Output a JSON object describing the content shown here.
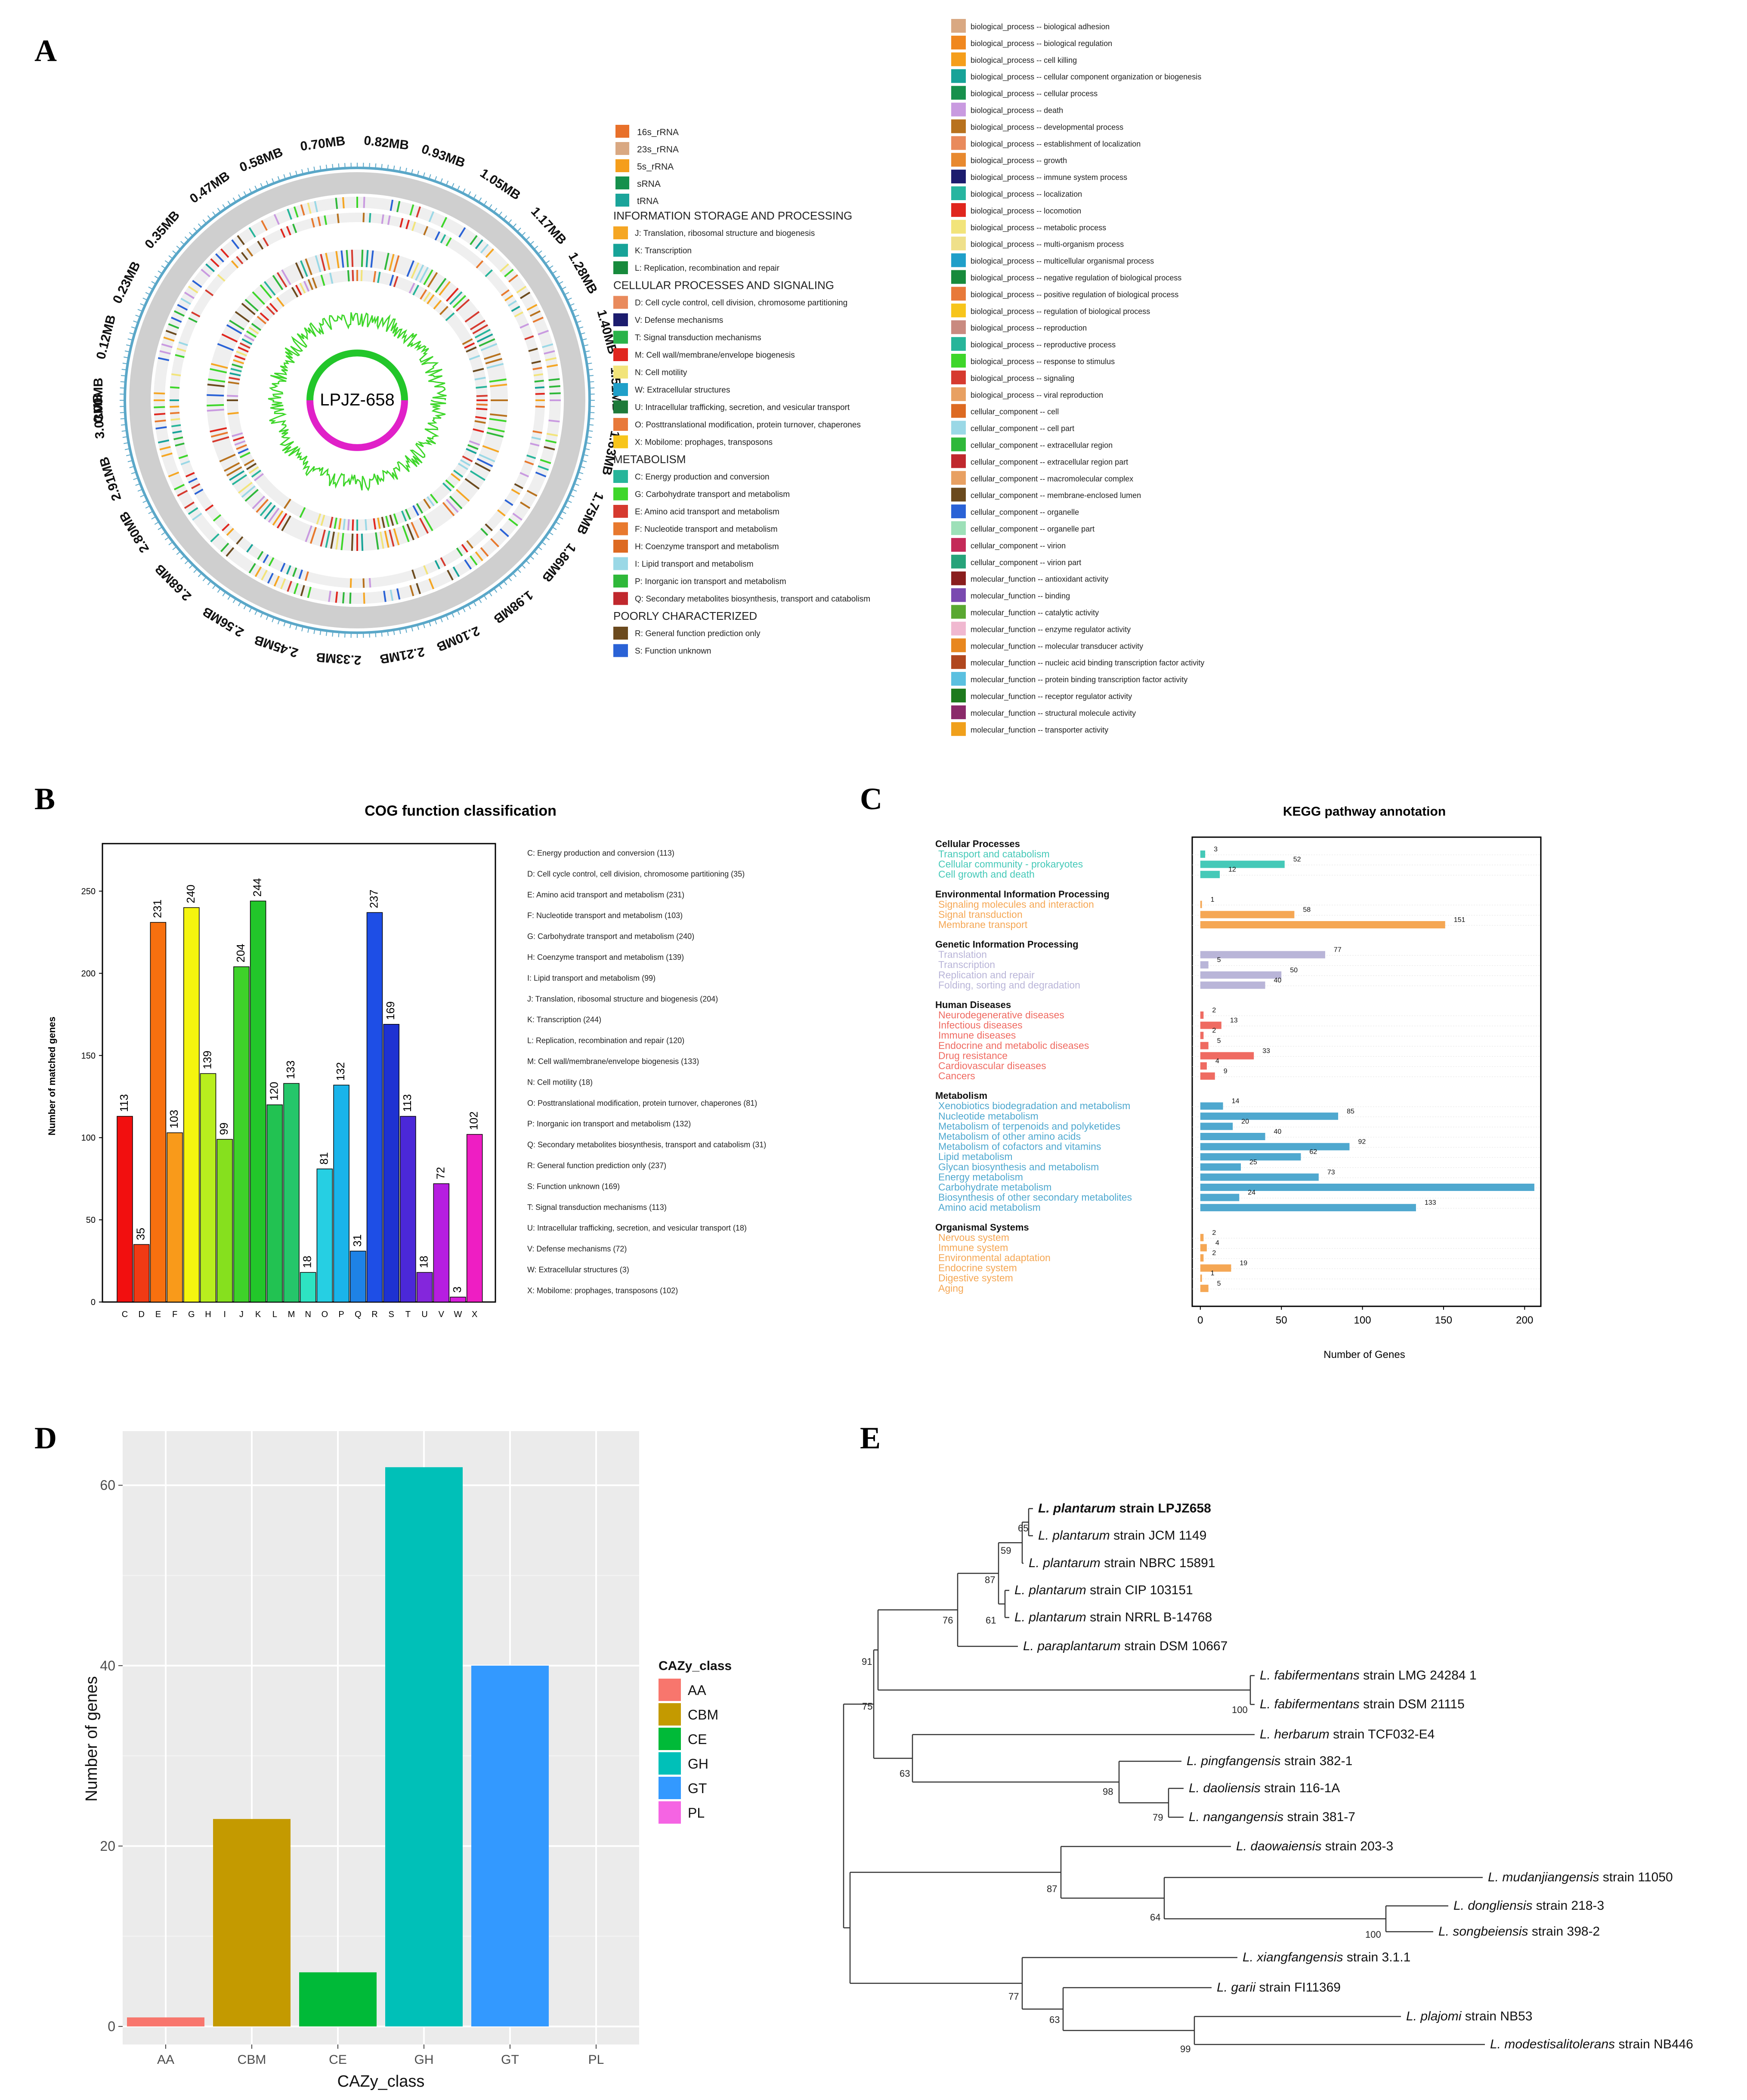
{
  "panels": {
    "a": "A",
    "b": "B",
    "c": "C",
    "d": "D",
    "e": "E"
  },
  "genome": {
    "center_label": "LPJZ-658",
    "scale_labels": [
      "0.00MB",
      "0.12MB",
      "0.23MB",
      "0.35MB",
      "0.47MB",
      "0.58MB",
      "0.70MB",
      "0.82MB",
      "0.93MB",
      "1.05MB",
      "1.17MB",
      "1.28MB",
      "1.40MB",
      "1.51MB",
      "1.63MB",
      "1.75MB",
      "1.86MB",
      "1.98MB",
      "2.10MB",
      "2.21MB",
      "2.33MB",
      "2.45MB",
      "2.56MB",
      "2.68MB",
      "2.80MB",
      "2.91MB",
      "3.03MB"
    ],
    "rna_legend": [
      {
        "label": "16s_rRNA",
        "color": "#e8702a"
      },
      {
        "label": "23s_rRNA",
        "color": "#d9a882"
      },
      {
        "label": "5s_rRNA",
        "color": "#f59e1b"
      },
      {
        "label": "sRNA",
        "color": "#16904c"
      },
      {
        "label": "tRNA",
        "color": "#1aa49a"
      }
    ],
    "cog_groups": [
      {
        "title": "INFORMATION STORAGE AND PROCESSING",
        "items": [
          {
            "label": "J: Translation, ribosomal structure and biogenesis",
            "color": "#f5a623"
          },
          {
            "label": "K: Transcription",
            "color": "#17a398"
          },
          {
            "label": "L: Replication, recombination and repair",
            "color": "#178a3c"
          }
        ]
      },
      {
        "title": "CELLULAR PROCESSES AND SIGNALING",
        "items": [
          {
            "label": "D: Cell cycle control, cell division, chromosome partitioning",
            "color": "#e98a5c"
          },
          {
            "label": "V: Defense mechanisms",
            "color": "#1c1c6e"
          },
          {
            "label": "T: Signal transduction mechanisms",
            "color": "#2ab34a"
          },
          {
            "label": "M: Cell wall/membrane/envelope biogenesis",
            "color": "#e0261e"
          },
          {
            "label": "N: Cell motility",
            "color": "#f2e47a"
          },
          {
            "label": "W: Extracellular structures",
            "color": "#1f9fc9"
          },
          {
            "label": "U: Intracellular trafficking, secretion, and vesicular transport",
            "color": "#1e7a3a"
          },
          {
            "label": "O: Posttranslational modification, protein turnover, chaperones",
            "color": "#e8793a"
          },
          {
            "label": "X: Mobilome: prophages, transposons",
            "color": "#f7c51b"
          }
        ]
      },
      {
        "title": "METABOLISM",
        "items": [
          {
            "label": "C: Energy production and conversion",
            "color": "#27b59a"
          },
          {
            "label": "G: Carbohydrate transport and metabolism",
            "color": "#3ed62a"
          },
          {
            "label": "E: Amino acid transport and metabolism",
            "color": "#d63a2f"
          },
          {
            "label": "F: Nucleotide transport and metabolism",
            "color": "#e8792e"
          },
          {
            "label": "H: Coenzyme transport and metabolism",
            "color": "#dd6a22"
          },
          {
            "label": "I: Lipid transport and metabolism",
            "color": "#9ad8e6"
          },
          {
            "label": "P: Inorganic ion transport and metabolism",
            "color": "#2fb83a"
          },
          {
            "label": "Q: Secondary metabolites biosynthesis, transport and catabolism",
            "color": "#c0282d"
          }
        ]
      },
      {
        "title": "POORLY CHARACTERIZED",
        "items": [
          {
            "label": "R: General function prediction only",
            "color": "#6b4a1e"
          },
          {
            "label": "S: Function unknown",
            "color": "#2a62d6"
          }
        ]
      }
    ],
    "go_legend": [
      {
        "label": "biological_process -- biological adhesion",
        "color": "#d9a882"
      },
      {
        "label": "biological_process -- biological regulation",
        "color": "#f0871f"
      },
      {
        "label": "biological_process -- cell killing",
        "color": "#f59e1b"
      },
      {
        "label": "biological_process -- cellular component organization or biogenesis",
        "color": "#17a398"
      },
      {
        "label": "biological_process -- cellular process",
        "color": "#17904c"
      },
      {
        "label": "biological_process -- death",
        "color": "#c99ae0"
      },
      {
        "label": "biological_process -- developmental process",
        "color": "#b8721e"
      },
      {
        "label": "biological_process -- establishment of localization",
        "color": "#e98a5c"
      },
      {
        "label": "biological_process -- growth",
        "color": "#e8892e"
      },
      {
        "label": "biological_process -- immune system process",
        "color": "#1c1c6e"
      },
      {
        "label": "biological_process -- localization",
        "color": "#27b5a0"
      },
      {
        "label": "biological_process -- locomotion",
        "color": "#e0261e"
      },
      {
        "label": "biological_process -- metabolic process",
        "color": "#f2e47a"
      },
      {
        "label": "biological_process -- multi-organism process",
        "color": "#efe08a"
      },
      {
        "label": "biological_process -- multicellular organismal process",
        "color": "#1f9fc9"
      },
      {
        "label": "biological_process -- negative regulation of biological process",
        "color": "#178a3c"
      },
      {
        "label": "biological_process -- positive regulation of biological process",
        "color": "#e8793a"
      },
      {
        "label": "biological_process -- regulation of biological process",
        "color": "#f7c51b"
      },
      {
        "label": "biological_process -- reproduction",
        "color": "#c98a80"
      },
      {
        "label": "biological_process -- reproductive process",
        "color": "#27b59a"
      },
      {
        "label": "biological_process -- response to stimulus",
        "color": "#3ed62a"
      },
      {
        "label": "biological_process -- signaling",
        "color": "#d63a2f"
      },
      {
        "label": "biological_process -- viral reproduction",
        "color": "#e8a062"
      },
      {
        "label": "cellular_component -- cell",
        "color": "#dd6a22"
      },
      {
        "label": "cellular_component -- cell part",
        "color": "#9ad8e6"
      },
      {
        "label": "cellular_component -- extracellular region",
        "color": "#2fb83a"
      },
      {
        "label": "cellular_component -- extracellular region part",
        "color": "#c0282d"
      },
      {
        "label": "cellular_component -- macromolecular complex",
        "color": "#e8a062"
      },
      {
        "label": "cellular_component -- membrane-enclosed lumen",
        "color": "#6b4a1e"
      },
      {
        "label": "cellular_component -- organelle",
        "color": "#2a62d6"
      },
      {
        "label": "cellular_component -- organelle part",
        "color": "#9de0b8"
      },
      {
        "label": "cellular_component -- virion",
        "color": "#c42a58"
      },
      {
        "label": "cellular_component -- virion part",
        "color": "#27a37a"
      },
      {
        "label": "molecular_function -- antioxidant activity",
        "color": "#8a1e1e"
      },
      {
        "label": "molecular_function -- binding",
        "color": "#7a4ab0"
      },
      {
        "label": "molecular_function -- catalytic activity",
        "color": "#5aa832"
      },
      {
        "label": "molecular_function -- enzyme regulator activity",
        "color": "#f0b8d0"
      },
      {
        "label": "molecular_function -- molecular transducer activity",
        "color": "#e8871f"
      },
      {
        "label": "molecular_function -- nucleic acid binding transcription factor activity",
        "color": "#b0471e"
      },
      {
        "label": "molecular_function -- protein binding transcription factor activity",
        "color": "#5ac0e0"
      },
      {
        "label": "molecular_function -- receptor regulator activity",
        "color": "#1e7a1e"
      },
      {
        "label": "molecular_function -- structural molecule activity",
        "color": "#8a2a6a"
      },
      {
        "label": "molecular_function -- transporter activity",
        "color": "#f0a01b"
      }
    ]
  },
  "chart_data": [
    {
      "id": "cog",
      "type": "bar",
      "title": "COG function classification",
      "xlabel": "",
      "ylabel": "Number of matched genes",
      "ylim": [
        0,
        275
      ],
      "yticks": [
        0,
        50,
        100,
        150,
        200,
        250
      ],
      "categories": [
        "C",
        "D",
        "E",
        "F",
        "G",
        "H",
        "I",
        "J",
        "K",
        "L",
        "M",
        "N",
        "O",
        "P",
        "Q",
        "R",
        "S",
        "T",
        "U",
        "V",
        "W",
        "X"
      ],
      "values": [
        113,
        35,
        231,
        103,
        240,
        139,
        99,
        204,
        244,
        120,
        133,
        18,
        81,
        132,
        31,
        237,
        169,
        113,
        18,
        72,
        3,
        102
      ],
      "colors": [
        "#f20f0f",
        "#f03a14",
        "#f7700f",
        "#f99a1a",
        "#f5f50f",
        "#b8ee1e",
        "#86e01e",
        "#3ed22a",
        "#22c62a",
        "#22c252",
        "#25c66a",
        "#2ee3c2",
        "#26cfe3",
        "#1ab4ea",
        "#1e82e6",
        "#1e4ee6",
        "#1e32d2",
        "#4b28d8",
        "#8426dc",
        "#b61ee0",
        "#d81edc",
        "#ee1ec3"
      ],
      "legend": [
        "C: Energy production and conversion  (113)",
        "D: Cell cycle control, cell division, chromosome partitioning  (35)",
        "E: Amino acid transport and metabolism  (231)",
        "F: Nucleotide transport and metabolism  (103)",
        "G: Carbohydrate transport and metabolism  (240)",
        "H: Coenzyme transport and metabolism  (139)",
        "I: Lipid transport and metabolism  (99)",
        "J: Translation, ribosomal structure and biogenesis  (204)",
        "K: Transcription  (244)",
        "L: Replication, recombination and repair  (120)",
        "M: Cell wall/membrane/envelope biogenesis  (133)",
        "N: Cell motility  (18)",
        "O: Posttranslational modification, protein turnover, chaperones  (81)",
        "P: Inorganic ion transport and metabolism  (132)",
        "Q: Secondary metabolites biosynthesis, transport and catabolism  (31)",
        "R: General function prediction only  (237)",
        "S: Function unknown  (169)",
        "T: Signal transduction mechanisms  (113)",
        "U: Intracellular trafficking, secretion, and vesicular transport  (18)",
        "V: Defense mechanisms  (72)",
        "W: Extracellular structures  (3)",
        "X: Mobilome: prophages, transposons  (102)"
      ]
    },
    {
      "id": "kegg",
      "type": "bar",
      "orientation": "horizontal",
      "title": "KEGG pathway annotation",
      "xlabel": "Number of Genes",
      "xlim": [
        -5,
        210
      ],
      "xticks": [
        0,
        50,
        100,
        150,
        200
      ],
      "groups": [
        {
          "name": "Cellular Processes",
          "color": "#45c9b8",
          "items": [
            {
              "label": "Transport and catabolism",
              "value": 3,
              "shown": "3"
            },
            {
              "label": "Cellular community - prokaryotes",
              "value": 52,
              "shown": "52"
            },
            {
              "label": "Cell growth and death",
              "value": 12,
              "shown": "12"
            }
          ]
        },
        {
          "name": "Environmental Information Processing",
          "color": "#f5a754",
          "items": [
            {
              "label": "Signaling molecules and interaction",
              "value": 1,
              "shown": "1"
            },
            {
              "label": "Signal transduction",
              "value": 58,
              "shown": "58"
            },
            {
              "label": "Membrane transport",
              "value": 151,
              "shown": "151"
            }
          ]
        },
        {
          "name": "Genetic Information Processing",
          "color": "#b9b5d8",
          "items": [
            {
              "label": "Translation",
              "value": 77,
              "shown": "77"
            },
            {
              "label": "Transcription",
              "value": 5,
              "shown": "5"
            },
            {
              "label": "Replication and repair",
              "value": 50,
              "shown": "50"
            },
            {
              "label": "Folding, sorting and degradation",
              "value": 40,
              "shown": "40"
            }
          ]
        },
        {
          "name": "Human Diseases",
          "color": "#ef6b62",
          "items": [
            {
              "label": "Neurodegenerative diseases",
              "value": 2,
              "shown": "2"
            },
            {
              "label": "Infectious diseases",
              "value": 13,
              "shown": "13"
            },
            {
              "label": "Immune diseases",
              "value": 2,
              "shown": "2"
            },
            {
              "label": "Endocrine and metabolic diseases",
              "value": 5,
              "shown": "5"
            },
            {
              "label": "Drug resistance",
              "value": 33,
              "shown": "33"
            },
            {
              "label": "Cardiovascular diseases",
              "value": 4,
              "shown": "4"
            },
            {
              "label": "Cancers",
              "value": 9,
              "shown": "9"
            }
          ]
        },
        {
          "name": "Metabolism",
          "color": "#4fa8cf",
          "items": [
            {
              "label": "Xenobiotics biodegradation and metabolism",
              "value": 14,
              "shown": "14"
            },
            {
              "label": "Nucleotide metabolism",
              "value": 85,
              "shown": "85"
            },
            {
              "label": "Metabolism of terpenoids and polyketides",
              "value": 20,
              "shown": "20"
            },
            {
              "label": "Metabolism of other amino acids",
              "value": 40,
              "shown": "40"
            },
            {
              "label": "Metabolism of cofactors and vitamins",
              "value": 92,
              "shown": "92"
            },
            {
              "label": "Lipid metabolism",
              "value": 62,
              "shown": "62"
            },
            {
              "label": "Glycan biosynthesis and metabolism",
              "value": 25,
              "shown": "25"
            },
            {
              "label": "Energy metabolism",
              "value": 73,
              "shown": "73"
            },
            {
              "label": "Carbohydrate metabolism",
              "value": 206,
              "shown": ""
            },
            {
              "label": "Biosynthesis of other secondary metabolites",
              "value": 24,
              "shown": "24"
            },
            {
              "label": "Amino acid metabolism",
              "value": 133,
              "shown": "133"
            }
          ]
        },
        {
          "name": "Organismal Systems",
          "color": "#f5a754",
          "items": [
            {
              "label": "Nervous system",
              "value": 2,
              "shown": "2"
            },
            {
              "label": "Immune system",
              "value": 4,
              "shown": "4"
            },
            {
              "label": "Environmental adaptation",
              "value": 2,
              "shown": "2"
            },
            {
              "label": "Endocrine system",
              "value": 19,
              "shown": "19"
            },
            {
              "label": "Digestive system",
              "value": 1,
              "shown": "1"
            },
            {
              "label": "Aging",
              "value": 5,
              "shown": "5"
            }
          ]
        }
      ]
    },
    {
      "id": "cazy",
      "type": "bar",
      "title": "",
      "xlabel": "CAZy_class",
      "ylabel": "Number of genes",
      "ylim": [
        -2,
        66
      ],
      "yticks": [
        0,
        20,
        40,
        60
      ],
      "categories": [
        "AA",
        "CBM",
        "CE",
        "GH",
        "GT",
        "PL"
      ],
      "values": [
        1,
        23,
        6,
        62,
        40,
        0
      ],
      "colors": [
        "#f8766d",
        "#c49a00",
        "#00ba38",
        "#00c0b8",
        "#3399ff",
        "#f564e3"
      ],
      "legend_title": "CAZy_class"
    }
  ],
  "tree": {
    "taxa": [
      {
        "genus": "L. plantarum",
        "strain": "strain LPJZ658",
        "bold": true
      },
      {
        "genus": "L. plantarum",
        "strain": "strain JCM 1149"
      },
      {
        "genus": "L. plantarum",
        "strain": "strain NBRC 15891"
      },
      {
        "genus": "L. plantarum",
        "strain": "strain CIP 103151"
      },
      {
        "genus": "L. plantarum",
        "strain": "strain NRRL B-14768"
      },
      {
        "genus": "L. paraplantarum",
        "strain": "strain DSM 10667"
      },
      {
        "genus": "L. fabifermentans",
        "strain": "strain LMG 24284 1"
      },
      {
        "genus": "L. fabifermentans",
        "strain": "strain DSM 21115"
      },
      {
        "genus": "L. herbarum",
        "strain": "strain TCF032-E4"
      },
      {
        "genus": "L. pingfangensis",
        "strain": "strain 382-1"
      },
      {
        "genus": "L. daoliensis",
        "strain": "strain 116-1A"
      },
      {
        "genus": "L. nangangensis",
        "strain": "strain 381-7"
      },
      {
        "genus": "L. daowaiensis",
        "strain": "strain 203-3"
      },
      {
        "genus": "L. mudanjiangensis",
        "strain": "strain 11050"
      },
      {
        "genus": "L. dongliensis",
        "strain": "strain 218-3"
      },
      {
        "genus": "L. songbeiensis",
        "strain": "strain 398-2"
      },
      {
        "genus": "L. xiangfangensis",
        "strain": "strain 3.1.1"
      },
      {
        "genus": "L. garii",
        "strain": "strain FI11369"
      },
      {
        "genus": "L. plajomi",
        "strain": "strain NB53"
      },
      {
        "genus": "L. modestisalitolerans",
        "strain": "strain NB446"
      }
    ],
    "bootstrap": [
      "65",
      "59",
      "87",
      "61",
      "76",
      "91",
      "100",
      "75",
      "63",
      "98",
      "79",
      "87",
      "64",
      "100",
      "77",
      "63",
      "99"
    ]
  }
}
